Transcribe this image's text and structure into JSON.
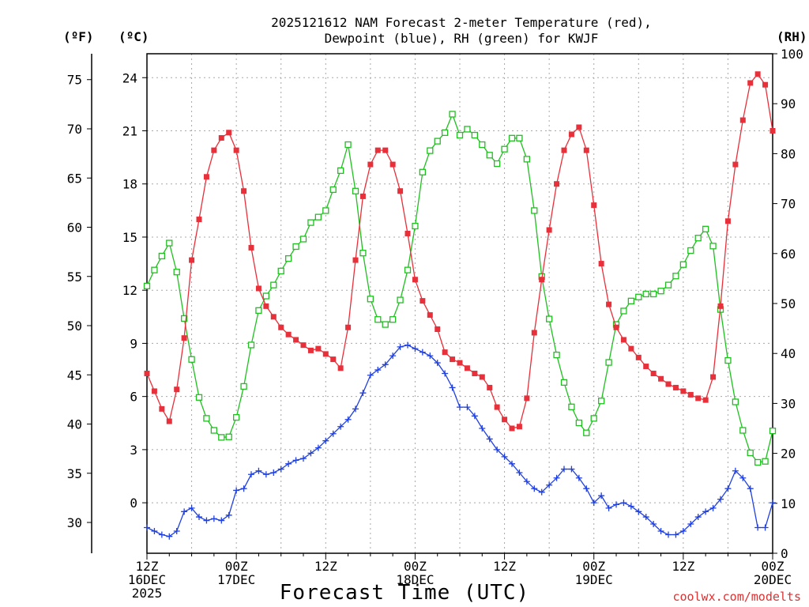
{
  "chart_data": {
    "type": "line",
    "title_lines": [
      "2025121612 NAM Forecast 2-meter Temperature (red),",
      "Dewpoint (blue), RH (green) for KWJF"
    ],
    "axis_units": {
      "fahrenheit": "(ºF)",
      "celsius": "(ºC)",
      "rh": "(RH)"
    },
    "xlabel": "Forecast Time (UTC)",
    "credit": "coolwx.com/modelts",
    "x_ticks": [
      {
        "hour": 0,
        "lines": [
          "12Z",
          "16DEC",
          "2025"
        ]
      },
      {
        "hour": 12,
        "lines": [
          "00Z",
          "17DEC"
        ]
      },
      {
        "hour": 24,
        "lines": [
          "12Z"
        ]
      },
      {
        "hour": 36,
        "lines": [
          "00Z",
          "18DEC"
        ]
      },
      {
        "hour": 48,
        "lines": [
          "12Z"
        ]
      },
      {
        "hour": 60,
        "lines": [
          "00Z",
          "19DEC"
        ]
      },
      {
        "hour": 72,
        "lines": [
          "12Z"
        ]
      },
      {
        "hour": 84,
        "lines": [
          "00Z",
          "20DEC"
        ]
      }
    ],
    "xlim_hours": [
      0,
      84
    ],
    "celsius_ticks": [
      0,
      3,
      6,
      9,
      12,
      15,
      18,
      21,
      24
    ],
    "celsius_lim": [
      -2.85,
      25.35
    ],
    "fahrenheit_ticks": [
      30,
      35,
      40,
      45,
      50,
      55,
      60,
      65,
      70,
      75
    ],
    "rh_ticks": [
      0,
      10,
      20,
      30,
      40,
      50,
      60,
      70,
      80,
      90,
      100
    ],
    "rh_lim": [
      0,
      100
    ],
    "grid": true,
    "series": [
      {
        "name": "Temperature",
        "unit": "°C",
        "color": "#e8303a",
        "marker": "filled-square",
        "values": [
          7.3,
          6.3,
          5.3,
          4.6,
          6.4,
          9.3,
          13.7,
          16.0,
          18.4,
          19.9,
          20.6,
          20.9,
          19.9,
          17.6,
          14.4,
          12.1,
          11.1,
          10.5,
          9.9,
          9.5,
          9.2,
          8.9,
          8.6,
          8.7,
          8.4,
          8.1,
          7.6,
          9.9,
          13.7,
          17.3,
          19.1,
          19.9,
          19.9,
          19.1,
          17.6,
          15.2,
          12.6,
          11.4,
          10.6,
          9.8,
          8.5,
          8.1,
          7.9,
          7.6,
          7.3,
          7.1,
          6.5,
          5.4,
          4.7,
          4.2,
          4.3,
          5.9,
          9.6,
          12.6,
          15.4,
          18.0,
          19.9,
          20.8,
          21.2,
          19.9,
          16.8,
          13.5,
          11.2,
          9.9,
          9.2,
          8.7,
          8.2,
          7.7,
          7.3,
          7.0,
          6.7,
          6.5,
          6.3,
          6.1,
          5.9,
          5.8,
          7.1,
          11.1,
          15.9,
          19.1,
          21.6,
          23.7,
          24.2,
          23.6,
          21.0
        ]
      },
      {
        "name": "Dewpoint",
        "unit": "°C",
        "color": "#2040e0",
        "marker": "plus",
        "values": [
          -1.4,
          -1.6,
          -1.8,
          -1.9,
          -1.6,
          -0.5,
          -0.3,
          -0.8,
          -1.0,
          -0.9,
          -1.0,
          -0.7,
          0.7,
          0.8,
          1.6,
          1.8,
          1.6,
          1.7,
          1.9,
          2.2,
          2.4,
          2.5,
          2.8,
          3.1,
          3.5,
          3.9,
          4.3,
          4.7,
          5.3,
          6.2,
          7.2,
          7.5,
          7.8,
          8.3,
          8.8,
          8.9,
          8.7,
          8.5,
          8.3,
          7.9,
          7.3,
          6.5,
          5.4,
          5.4,
          4.9,
          4.2,
          3.6,
          3.0,
          2.6,
          2.2,
          1.7,
          1.2,
          0.8,
          0.6,
          1.0,
          1.4,
          1.9,
          1.9,
          1.4,
          0.8,
          0.0,
          0.4,
          -0.3,
          -0.1,
          0.0,
          -0.2,
          -0.5,
          -0.8,
          -1.2,
          -1.6,
          -1.8,
          -1.8,
          -1.6,
          -1.2,
          -0.8,
          -0.5,
          -0.3,
          0.2,
          0.8,
          1.8,
          1.4,
          0.8,
          -1.4,
          -1.4,
          0.0
        ]
      },
      {
        "name": "RH",
        "unit": "%",
        "color": "#20c020",
        "marker": "open-square",
        "values": [
          53.5,
          56.7,
          59.5,
          62.1,
          56.3,
          47.0,
          38.8,
          31.2,
          27.0,
          24.6,
          23.2,
          23.3,
          27.2,
          33.4,
          41.7,
          48.6,
          51.5,
          53.7,
          56.5,
          59.0,
          61.4,
          62.9,
          66.2,
          67.3,
          68.6,
          72.8,
          76.6,
          81.8,
          72.5,
          60.1,
          50.9,
          46.8,
          45.8,
          46.8,
          50.7,
          56.7,
          65.5,
          76.3,
          80.6,
          82.5,
          84.2,
          87.9,
          83.7,
          84.9,
          83.7,
          81.8,
          79.7,
          78.0,
          80.9,
          83.1,
          83.1,
          78.9,
          68.6,
          55.4,
          46.9,
          39.7,
          34.2,
          29.3,
          26.1,
          24.1,
          27.0,
          30.5,
          38.2,
          45.8,
          48.5,
          50.5,
          51.3,
          51.9,
          51.9,
          52.5,
          53.7,
          55.5,
          57.8,
          60.6,
          63.1,
          64.9,
          61.5,
          48.8,
          38.6,
          30.3,
          24.6,
          20.1,
          18.2,
          18.4,
          24.5
        ]
      }
    ]
  }
}
